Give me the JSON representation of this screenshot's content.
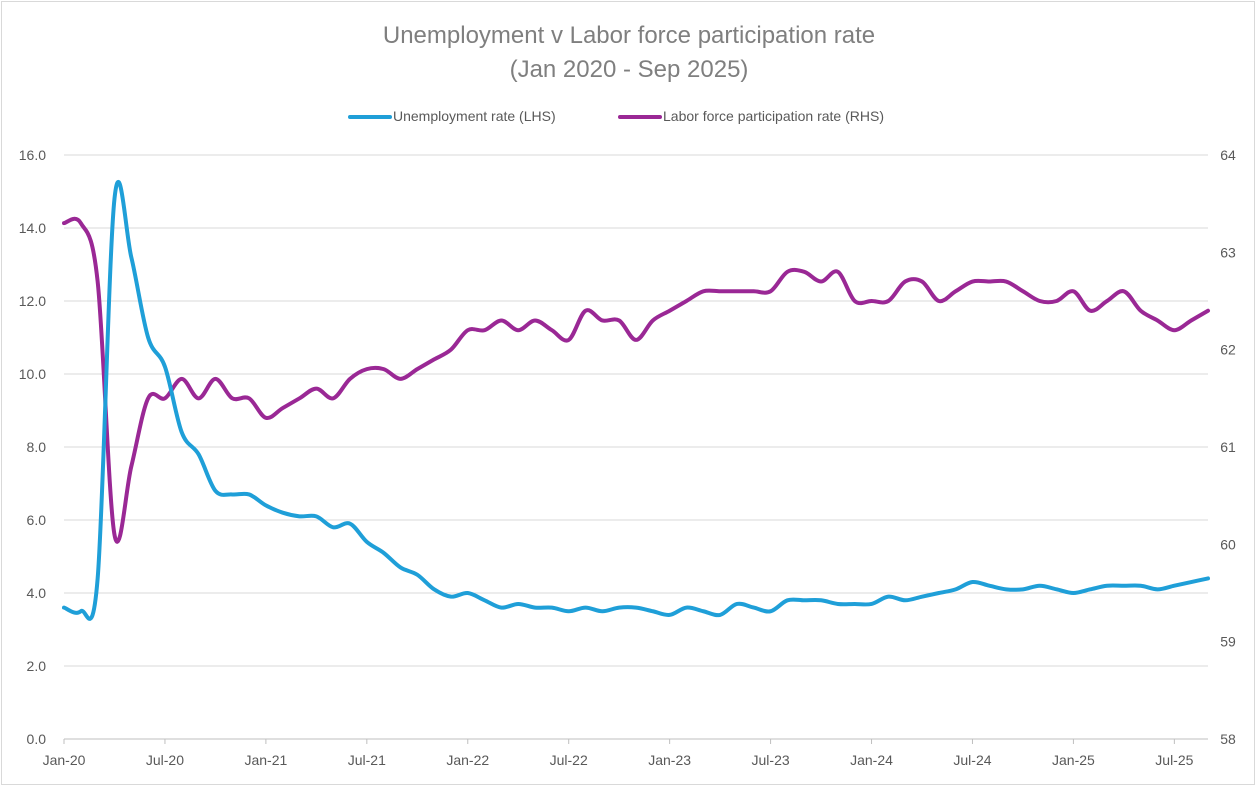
{
  "chart_data": {
    "type": "line",
    "title": "Unemployment v Labor force participation rate",
    "subtitle": "(Jan 2020 - Sep 2025)",
    "xlabel": "",
    "ylabel": "",
    "ylim": [
      0,
      16
    ],
    "y2lim": [
      58,
      64
    ],
    "yticks": [
      "0.0",
      "2.0",
      "4.0",
      "6.0",
      "8.0",
      "10.0",
      "12.0",
      "14.0",
      "16.0"
    ],
    "y2ticks": [
      "58",
      "59",
      "60",
      "61",
      "62",
      "63",
      "64"
    ],
    "xticks": [
      "Jan-20",
      "Jul-20",
      "Jan-21",
      "Jul-21",
      "Jan-22",
      "Jul-22",
      "Jan-23",
      "Jul-23",
      "Jan-24",
      "Jul-24",
      "Jan-25",
      "Jul-25"
    ],
    "legend_position": "top",
    "grid": true,
    "series": [
      {
        "name": "Unemployment rate (LHS)",
        "axis": "left",
        "color": "#1f9fd8",
        "values": [
          3.6,
          3.5,
          4.4,
          14.8,
          13.2,
          11.0,
          10.2,
          8.4,
          7.8,
          6.8,
          6.7,
          6.7,
          6.4,
          6.2,
          6.1,
          6.1,
          5.8,
          5.9,
          5.4,
          5.1,
          4.7,
          4.5,
          4.1,
          3.9,
          4.0,
          3.8,
          3.6,
          3.7,
          3.6,
          3.6,
          3.5,
          3.6,
          3.5,
          3.6,
          3.6,
          3.5,
          3.4,
          3.6,
          3.5,
          3.4,
          3.7,
          3.6,
          3.5,
          3.8,
          3.8,
          3.8,
          3.7,
          3.7,
          3.7,
          3.9,
          3.8,
          3.9,
          4.0,
          4.1,
          4.3,
          4.2,
          4.1,
          4.1,
          4.2,
          4.1,
          4.0,
          4.1,
          4.2,
          4.2,
          4.2,
          4.1,
          4.2,
          4.3,
          4.4
        ]
      },
      {
        "name": "Labor force participation rate (RHS)",
        "axis": "right",
        "color": "#9a2895",
        "values": [
          63.3,
          63.3,
          62.7,
          60.1,
          60.8,
          61.5,
          61.5,
          61.7,
          61.5,
          61.7,
          61.5,
          61.5,
          61.3,
          61.4,
          61.5,
          61.6,
          61.5,
          61.7,
          61.8,
          61.8,
          61.7,
          61.8,
          61.9,
          62.0,
          62.2,
          62.2,
          62.3,
          62.2,
          62.3,
          62.2,
          62.1,
          62.4,
          62.3,
          62.3,
          62.1,
          62.3,
          62.4,
          62.5,
          62.6,
          62.6,
          62.6,
          62.6,
          62.6,
          62.8,
          62.8,
          62.7,
          62.8,
          62.5,
          62.5,
          62.5,
          62.7,
          62.7,
          62.5,
          62.6,
          62.7,
          62.7,
          62.7,
          62.6,
          62.5,
          62.5,
          62.6,
          62.4,
          62.5,
          62.6,
          62.4,
          62.3,
          62.2,
          62.3,
          62.4
        ]
      }
    ]
  }
}
